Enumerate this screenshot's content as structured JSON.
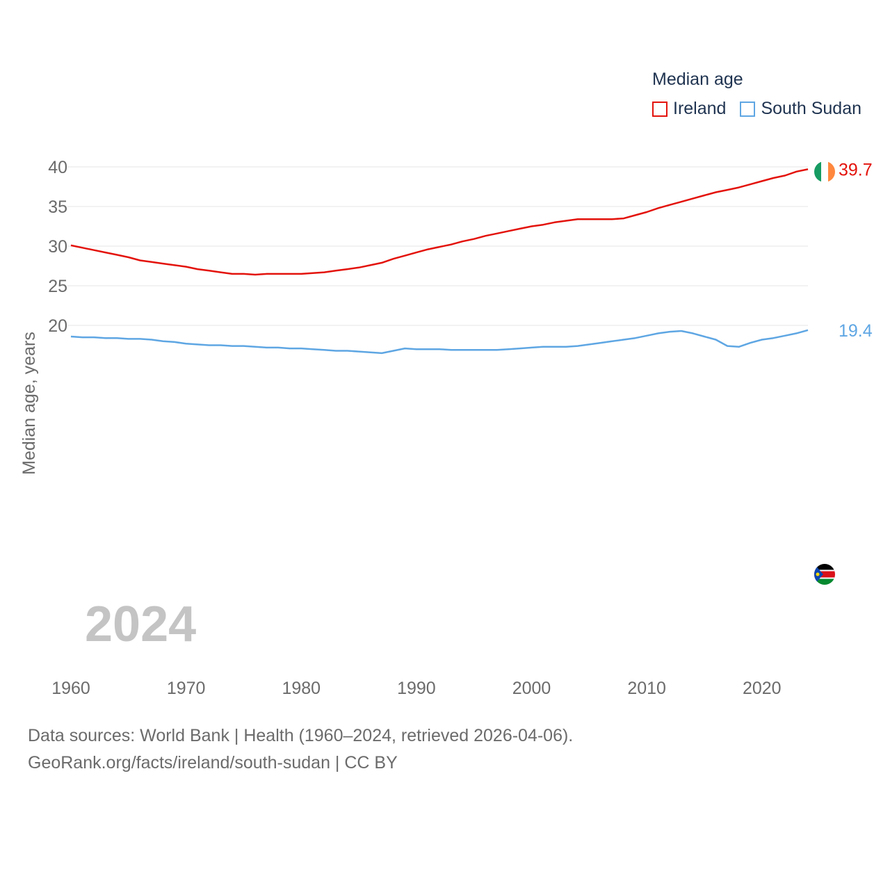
{
  "footer": {
    "line1": "Data sources: World Bank | Health (1960–2024, retrieved 2026-04-06).",
    "line2": "GeoRank.org/facts/ireland/south-sudan | CC BY"
  },
  "chart_data": {
    "type": "line",
    "legend_title": "Median age",
    "ylabel": "Median age, years",
    "xlabel": "",
    "year_label": "2024",
    "xlim": [
      1960,
      2024
    ],
    "ylim": [
      15,
      40
    ],
    "yticks": [
      20,
      25,
      30,
      35,
      40
    ],
    "xticks": [
      1960,
      1970,
      1980,
      1990,
      2000,
      2010,
      2020
    ],
    "x": [
      1960,
      1961,
      1962,
      1963,
      1964,
      1965,
      1966,
      1967,
      1968,
      1969,
      1970,
      1971,
      1972,
      1973,
      1974,
      1975,
      1976,
      1977,
      1978,
      1979,
      1980,
      1981,
      1982,
      1983,
      1984,
      1985,
      1986,
      1987,
      1988,
      1989,
      1990,
      1991,
      1992,
      1993,
      1994,
      1995,
      1996,
      1997,
      1998,
      1999,
      2000,
      2001,
      2002,
      2003,
      2004,
      2005,
      2006,
      2007,
      2008,
      2009,
      2010,
      2011,
      2012,
      2013,
      2014,
      2015,
      2016,
      2017,
      2018,
      2019,
      2020,
      2021,
      2022,
      2023,
      2024
    ],
    "series": [
      {
        "name": "Ireland",
        "color": "#e3120b",
        "end_label": "39.7",
        "values": [
          30.1,
          29.8,
          29.5,
          29.2,
          28.9,
          28.6,
          28.2,
          28.0,
          27.8,
          27.6,
          27.4,
          27.1,
          26.9,
          26.7,
          26.5,
          26.5,
          26.4,
          26.5,
          26.5,
          26.5,
          26.5,
          26.6,
          26.7,
          26.9,
          27.1,
          27.3,
          27.6,
          27.9,
          28.4,
          28.8,
          29.2,
          29.6,
          29.9,
          30.2,
          30.6,
          30.9,
          31.3,
          31.6,
          31.9,
          32.2,
          32.5,
          32.7,
          33.0,
          33.2,
          33.4,
          33.4,
          33.4,
          33.4,
          33.5,
          33.9,
          34.3,
          34.8,
          35.2,
          35.6,
          36.0,
          36.4,
          36.8,
          37.1,
          37.4,
          37.8,
          38.2,
          38.6,
          38.9,
          39.4,
          39.7
        ]
      },
      {
        "name": "South Sudan",
        "color": "#5ea6e3",
        "end_label": "19.4",
        "values": [
          18.6,
          18.5,
          18.5,
          18.4,
          18.4,
          18.3,
          18.3,
          18.2,
          18.0,
          17.9,
          17.7,
          17.6,
          17.5,
          17.5,
          17.4,
          17.4,
          17.3,
          17.2,
          17.2,
          17.1,
          17.1,
          17.0,
          16.9,
          16.8,
          16.8,
          16.7,
          16.6,
          16.5,
          16.8,
          17.1,
          17.0,
          17.0,
          17.0,
          16.9,
          16.9,
          16.9,
          16.9,
          16.9,
          17.0,
          17.1,
          17.2,
          17.3,
          17.3,
          17.3,
          17.4,
          17.6,
          17.8,
          18.0,
          18.2,
          18.4,
          18.7,
          19.0,
          19.2,
          19.3,
          19.0,
          18.6,
          18.2,
          17.4,
          17.3,
          17.8,
          18.2,
          18.4,
          18.7,
          19.0,
          19.4
        ]
      }
    ]
  }
}
